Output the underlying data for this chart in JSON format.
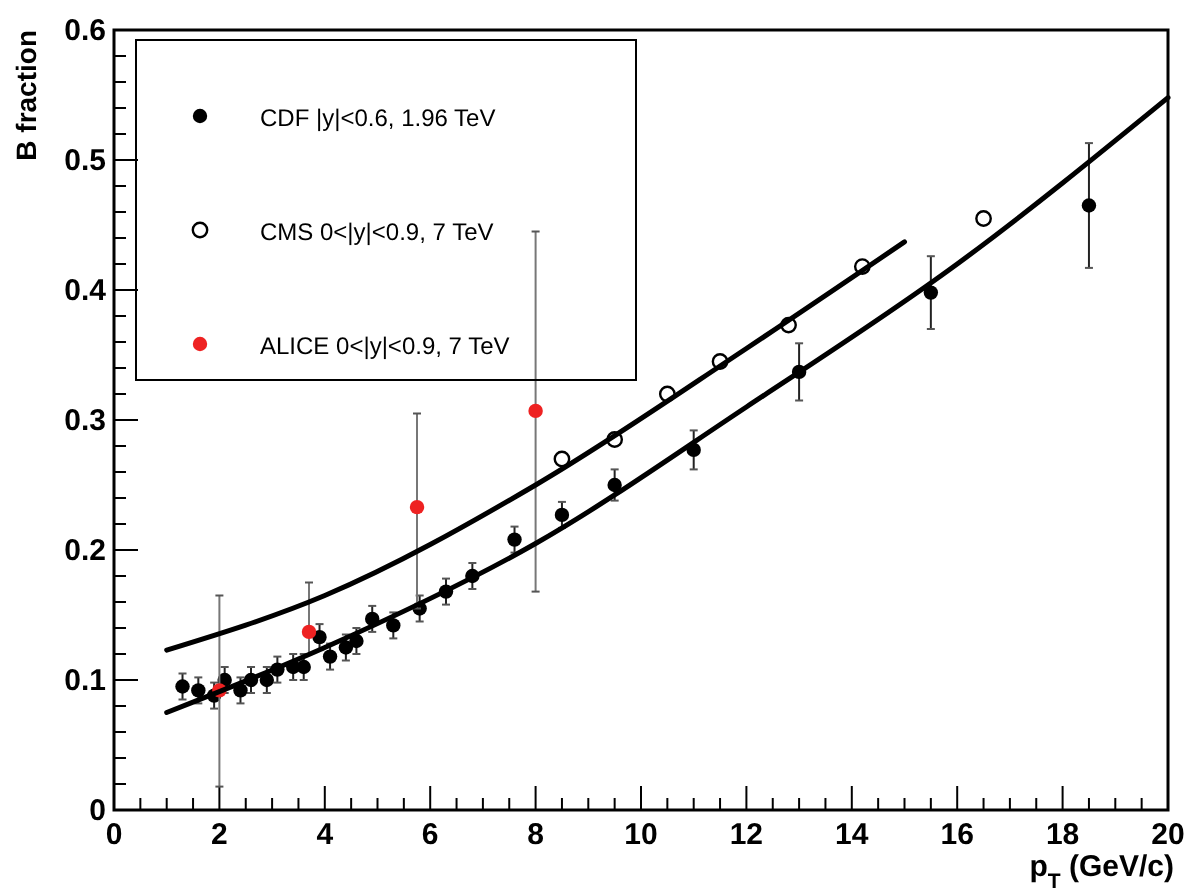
{
  "chart_data": {
    "type": "scatter",
    "xlabel": "p$_{T}$ (GeV/c)",
    "ylabel": "B fraction",
    "xlim": [
      0,
      20
    ],
    "ylim": [
      0,
      0.6
    ],
    "xticks": [
      0,
      {
        "value": 0.5,
        "label": null
      },
      {
        "value": 1,
        "label": null
      },
      {
        "value": 1.5,
        "label": null
      },
      2,
      {
        "value": 2.5,
        "label": null
      },
      {
        "value": 3,
        "label": null
      },
      {
        "value": 3.5,
        "label": null
      },
      4,
      {
        "value": 4.5,
        "label": null
      },
      {
        "value": 5,
        "label": null
      },
      {
        "value": 5.5,
        "label": null
      },
      6,
      {
        "value": 6.5,
        "label": null
      },
      {
        "value": 7,
        "label": null
      },
      {
        "value": 7.5,
        "label": null
      },
      8,
      {
        "value": 8.5,
        "label": null
      },
      {
        "value": 9,
        "label": null
      },
      {
        "value": 9.5,
        "label": null
      },
      10,
      {
        "value": 10.5,
        "label": null
      },
      {
        "value": 11,
        "label": null
      },
      {
        "value": 11.5,
        "label": null
      },
      12,
      {
        "value": 12.5,
        "label": null
      },
      {
        "value": 13,
        "label": null
      },
      {
        "value": 13.5,
        "label": null
      },
      14,
      {
        "value": 14.5,
        "label": null
      },
      {
        "value": 15,
        "label": null
      },
      {
        "value": 15.5,
        "label": null
      },
      16,
      {
        "value": 16.5,
        "label": null
      },
      {
        "value": 17,
        "label": null
      },
      {
        "value": 17.5,
        "label": null
      },
      18,
      {
        "value": 18.5,
        "label": null
      },
      {
        "value": 19,
        "label": null
      },
      {
        "value": 19.5,
        "label": null
      },
      20
    ],
    "yticks": [
      0,
      {
        "value": 0.02,
        "label": null
      },
      {
        "value": 0.04,
        "label": null
      },
      {
        "value": 0.06,
        "label": null
      },
      {
        "value": 0.08,
        "label": null
      },
      0.1,
      {
        "value": 0.12,
        "label": null
      },
      {
        "value": 0.14,
        "label": null
      },
      {
        "value": 0.16,
        "label": null
      },
      {
        "value": 0.18,
        "label": null
      },
      0.2,
      {
        "value": 0.22,
        "label": null
      },
      {
        "value": 0.24,
        "label": null
      },
      {
        "value": 0.26,
        "label": null
      },
      {
        "value": 0.28,
        "label": null
      },
      0.3,
      {
        "value": 0.32,
        "label": null
      },
      {
        "value": 0.34,
        "label": null
      },
      {
        "value": 0.36,
        "label": null
      },
      {
        "value": 0.38,
        "label": null
      },
      0.4,
      {
        "value": 0.42,
        "label": null
      },
      {
        "value": 0.44,
        "label": null
      },
      {
        "value": 0.46,
        "label": null
      },
      {
        "value": 0.48,
        "label": null
      },
      0.5,
      {
        "value": 0.52,
        "label": null
      },
      {
        "value": 0.54,
        "label": null
      },
      {
        "value": 0.56,
        "label": null
      },
      {
        "value": 0.58,
        "label": null
      },
      0.6
    ],
    "legend": "top left",
    "marker": "circle",
    "grid": false,
    "series": [
      {
        "name": "CDF |y|<0.6, 1.96 TeV",
        "color": "#000000",
        "x": [
          1.3,
          1.6,
          1.9,
          2.1,
          2.4,
          2.6,
          2.9,
          3.1,
          3.4,
          3.6,
          3.9,
          4.1,
          4.4,
          4.6,
          4.9,
          5.3,
          5.8,
          6.3,
          6.8,
          7.6,
          8.5,
          9.5,
          11,
          13,
          15.5,
          18.5
        ],
        "values": [
          0.095,
          0.092,
          0.088,
          0.1,
          0.092,
          0.1,
          0.1,
          0.108,
          0.11,
          0.11,
          0.133,
          0.118,
          0.125,
          0.13,
          0.147,
          0.142,
          0.155,
          0.168,
          0.18,
          0.208,
          0.227,
          0.25,
          0.277,
          0.337,
          0.398,
          0.465
        ],
        "errors": [
          0.01,
          0.01,
          0.01,
          0.01,
          0.01,
          0.01,
          0.01,
          0.01,
          0.01,
          0.01,
          0.01,
          0.01,
          0.01,
          0.01,
          0.01,
          0.01,
          0.01,
          0.01,
          0.01,
          0.01,
          0.01,
          0.012,
          0.015,
          0.022,
          0.028,
          0.048
        ]
      },
      {
        "name": "CMS 0<|y|<0.9, 7 TeV",
        "color": "#000000",
        "x": [
          8.5,
          9.5,
          10.5,
          11.5,
          12.8,
          14.2,
          16.5
        ],
        "values": [
          0.27,
          0.285,
          0.32,
          0.345,
          0.373,
          0.418,
          0.455
        ]
      },
      {
        "name": "ALICE 0<|y|<0.9, 7 TeV",
        "color": "#ee2222",
        "x": [
          2,
          3.7,
          5.75,
          8
        ],
        "values": [
          0.092,
          0.137,
          0.233,
          0.307
        ],
        "errors": [
          [
            0.018,
            0.165
          ],
          [
            0.12,
            0.175
          ],
          [
            0.155,
            0.305
          ],
          [
            0.168,
            0.445
          ]
        ]
      },
      {
        "type": "line",
        "marker": "none",
        "color": "#000000",
        "x": [
          1,
          4,
          8,
          12,
          16,
          20
        ],
        "values": [
          0.075,
          0.125,
          0.205,
          0.31,
          0.42,
          0.548
        ]
      },
      {
        "type": "line",
        "marker": "none",
        "color": "#000000",
        "x": [
          1,
          4,
          8,
          12,
          15
        ],
        "values": [
          0.123,
          0.165,
          0.25,
          0.355,
          0.437
        ]
      }
    ]
  }
}
